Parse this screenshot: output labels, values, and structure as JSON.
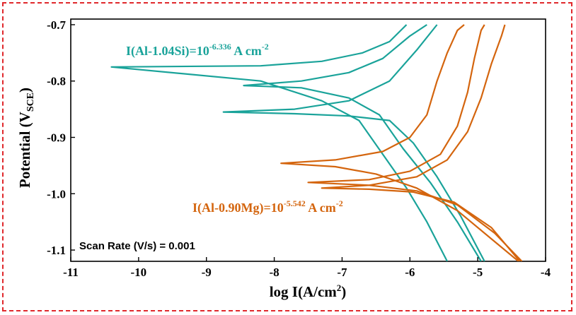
{
  "chart_data": {
    "type": "line",
    "xlabel": "log I(A/cm",
    "xlabel_sup": "2",
    "xlabel_end": ")",
    "ylabel": "Potential (V",
    "ylabel_sub": "SCE",
    "ylabel_end": ")",
    "xlim": [
      -11,
      -4
    ],
    "ylim": [
      -1.12,
      -0.69
    ],
    "xticks": [
      -11,
      -10,
      -9,
      -8,
      -7,
      -6,
      -5,
      -4
    ],
    "yticks": [
      -0.7,
      -0.8,
      -0.9,
      -1.0,
      -1.1
    ],
    "xtick_labels": [
      "-11",
      "-10",
      "-9",
      "-8",
      "-7",
      "-6",
      "-5",
      "-4"
    ],
    "ytick_labels": [
      "-0.7",
      "-0.8",
      "-0.9",
      "-1.0",
      "-1.1"
    ],
    "annotations": {
      "si": {
        "prefix": "I(Al-1.04Si)=10",
        "exp": "-6.336",
        "unit": " A cm",
        "unit_exp": "-2",
        "color": "#1aa39a"
      },
      "mg": {
        "prefix": "I(Al-0.90Mg)=10",
        "exp": "-5.542",
        "unit": " A cm",
        "unit_exp": "-2",
        "color": "#d4650e"
      },
      "scan_rate": "Scan Rate (V/s) = 0.001"
    },
    "series": [
      {
        "group": "si",
        "color": "#1aa39a",
        "points": [
          [
            -5.45,
            -1.12
          ],
          [
            -5.75,
            -1.05
          ],
          [
            -6.05,
            -0.99
          ],
          [
            -6.4,
            -0.93
          ],
          [
            -6.75,
            -0.87
          ],
          [
            -7.3,
            -0.835
          ],
          [
            -8.2,
            -0.8
          ],
          [
            -10.4,
            -0.775
          ],
          [
            -8.2,
            -0.773
          ],
          [
            -7.3,
            -0.765
          ],
          [
            -6.7,
            -0.75
          ],
          [
            -6.3,
            -0.73
          ],
          [
            -6.05,
            -0.7
          ]
        ]
      },
      {
        "group": "si",
        "color": "#1aa39a",
        "points": [
          [
            -4.95,
            -1.12
          ],
          [
            -5.3,
            -1.05
          ],
          [
            -5.7,
            -0.98
          ],
          [
            -6.1,
            -0.92
          ],
          [
            -6.45,
            -0.86
          ],
          [
            -6.9,
            -0.83
          ],
          [
            -7.6,
            -0.812
          ],
          [
            -8.45,
            -0.808
          ],
          [
            -7.6,
            -0.8
          ],
          [
            -6.9,
            -0.785
          ],
          [
            -6.4,
            -0.76
          ],
          [
            -6.0,
            -0.72
          ],
          [
            -5.75,
            -0.7
          ]
        ]
      },
      {
        "group": "si",
        "color": "#1aa39a",
        "points": [
          [
            -4.9,
            -1.12
          ],
          [
            -5.25,
            -1.04
          ],
          [
            -5.6,
            -0.97
          ],
          [
            -5.95,
            -0.91
          ],
          [
            -6.3,
            -0.87
          ],
          [
            -6.9,
            -0.862
          ],
          [
            -7.7,
            -0.858
          ],
          [
            -8.75,
            -0.855
          ],
          [
            -7.7,
            -0.85
          ],
          [
            -6.9,
            -0.835
          ],
          [
            -6.3,
            -0.8
          ],
          [
            -5.9,
            -0.745
          ],
          [
            -5.6,
            -0.7
          ]
        ]
      },
      {
        "group": "mg",
        "color": "#d4650e",
        "points": [
          [
            -4.4,
            -1.12
          ],
          [
            -4.8,
            -1.08
          ],
          [
            -5.3,
            -1.03
          ],
          [
            -5.9,
            -0.99
          ],
          [
            -6.5,
            -0.965
          ],
          [
            -7.1,
            -0.952
          ],
          [
            -7.9,
            -0.946
          ],
          [
            -7.1,
            -0.94
          ],
          [
            -6.4,
            -0.925
          ],
          [
            -6.0,
            -0.9
          ],
          [
            -5.75,
            -0.86
          ],
          [
            -5.6,
            -0.8
          ],
          [
            -5.45,
            -0.75
          ],
          [
            -5.3,
            -0.71
          ],
          [
            -5.2,
            -0.7
          ]
        ]
      },
      {
        "group": "mg",
        "color": "#d4650e",
        "points": [
          [
            -4.35,
            -1.12
          ],
          [
            -4.75,
            -1.07
          ],
          [
            -5.3,
            -1.02
          ],
          [
            -5.9,
            -0.995
          ],
          [
            -6.6,
            -0.985
          ],
          [
            -7.5,
            -0.98
          ],
          [
            -6.6,
            -0.975
          ],
          [
            -6.0,
            -0.96
          ],
          [
            -5.55,
            -0.93
          ],
          [
            -5.3,
            -0.88
          ],
          [
            -5.15,
            -0.82
          ],
          [
            -5.05,
            -0.76
          ],
          [
            -4.95,
            -0.71
          ],
          [
            -4.9,
            -0.7
          ]
        ]
      },
      {
        "group": "mg",
        "color": "#d4650e",
        "points": [
          [
            -4.38,
            -1.12
          ],
          [
            -4.8,
            -1.06
          ],
          [
            -5.35,
            -1.015
          ],
          [
            -5.95,
            -0.997
          ],
          [
            -6.6,
            -0.992
          ],
          [
            -7.3,
            -0.99
          ],
          [
            -6.6,
            -0.985
          ],
          [
            -5.9,
            -0.97
          ],
          [
            -5.45,
            -0.94
          ],
          [
            -5.15,
            -0.89
          ],
          [
            -4.95,
            -0.83
          ],
          [
            -4.8,
            -0.77
          ],
          [
            -4.65,
            -0.72
          ],
          [
            -4.6,
            -0.7
          ]
        ]
      }
    ]
  }
}
